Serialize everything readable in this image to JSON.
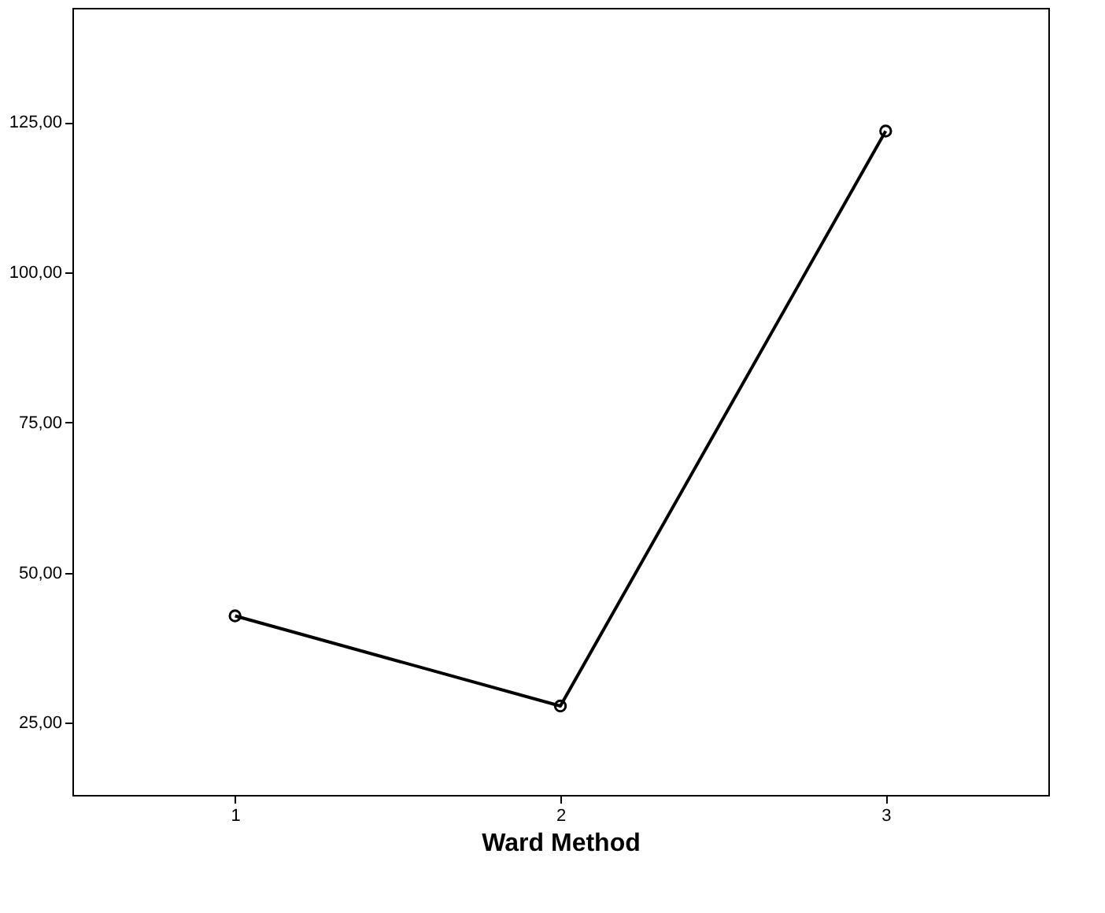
{
  "chart_data": {
    "type": "line",
    "xlabel": "Ward Method",
    "categories": [
      "1",
      "2",
      "3"
    ],
    "series": [
      {
        "color": "#000000",
        "values": [
          42.8,
          27.8,
          123.5
        ]
      }
    ],
    "ylim": [
      13,
      144
    ],
    "yticks": [
      {
        "value": 25,
        "label": "25,00"
      },
      {
        "value": 50,
        "label": "50,00"
      },
      {
        "value": 75,
        "label": "75,00"
      },
      {
        "value": 100,
        "label": "100,00"
      },
      {
        "value": 125,
        "label": "125,00"
      }
    ],
    "marker": "circle",
    "line_style": "solid",
    "grid": false
  }
}
